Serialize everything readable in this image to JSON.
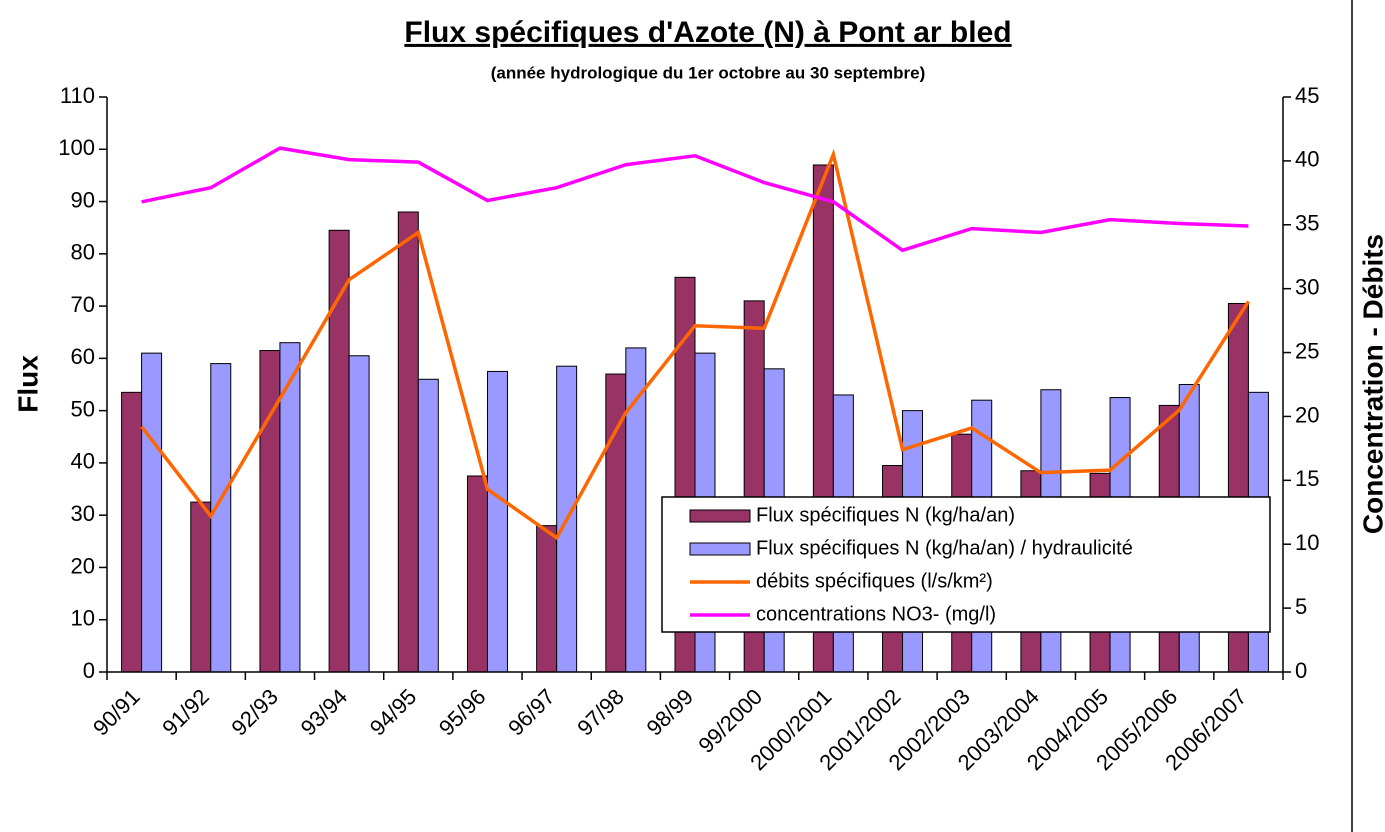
{
  "chart_data": {
    "type": "bar",
    "title": "Flux spécifiques d'Azote (N) à Pont ar bled",
    "subtitle": "(année hydrologique du 1er octobre au 30 septembre)",
    "y_label": "Flux",
    "y2_label": "Concentration - Débits",
    "categories": [
      "90/91",
      "91/92",
      "92/93",
      "93/94",
      "94/95",
      "95/96",
      "96/97",
      "97/98",
      "98/99",
      "99/2000",
      "2000/2001",
      "2001/2002",
      "2002/2003",
      "2003/2004",
      "2004/2005",
      "2005/2006",
      "2006/2007"
    ],
    "series": [
      {
        "name": "Flux spécifiques N (kg/ha/an)",
        "type": "bar",
        "color": "#993366",
        "values": [
          53.5,
          32.5,
          61.5,
          84.5,
          88,
          37.5,
          28,
          57,
          75.5,
          71,
          97,
          39.5,
          45.5,
          38.5,
          38,
          51,
          70.5
        ]
      },
      {
        "name": "Flux spécifiques N (kg/ha/an) / hydraulicité",
        "type": "bar",
        "color": "#9999ff",
        "values": [
          61,
          59,
          63,
          60.5,
          56,
          57.5,
          58.5,
          62,
          61,
          58,
          53,
          50,
          52,
          54,
          52.5,
          55,
          53.5
        ]
      },
      {
        "name": "débits spécifiques (l/s/km²)",
        "type": "line",
        "axis": "y2",
        "color": "#ff6600",
        "values": [
          19.2,
          12.2,
          21.4,
          30.7,
          34.4,
          14.3,
          10.5,
          20.3,
          27.1,
          26.9,
          40.5,
          17.4,
          19.1,
          15.6,
          15.8,
          20.5,
          29.0
        ]
      },
      {
        "name": "concentrations NO3- (mg/l)",
        "type": "line",
        "axis": "y2",
        "color": "#ff00ff",
        "values": [
          36.8,
          37.9,
          41.0,
          40.1,
          39.9,
          36.9,
          37.9,
          39.7,
          40.4,
          38.3,
          36.8,
          33.0,
          34.7,
          34.4,
          35.4,
          35.1,
          34.9
        ]
      }
    ],
    "ylim": [
      0,
      110
    ],
    "yticks": [
      0,
      10,
      20,
      30,
      40,
      50,
      60,
      70,
      80,
      90,
      100,
      110
    ],
    "y2lim": [
      0,
      45
    ],
    "y2ticks": [
      0,
      5,
      10,
      15,
      20,
      25,
      30,
      35,
      40,
      45
    ],
    "legend": "bottom-right"
  }
}
